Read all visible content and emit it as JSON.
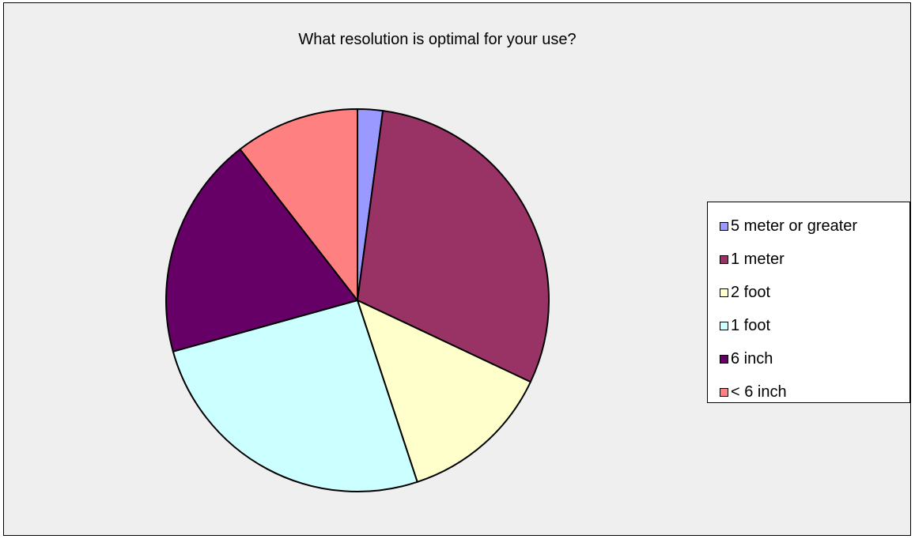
{
  "chart_data": {
    "type": "pie",
    "title": "What resolution is optimal for your use?",
    "categories": [
      "5 meter or greater",
      "1 meter",
      "2 foot",
      "1 foot",
      "6 inch",
      "< 6 inch"
    ],
    "values": [
      2.2,
      31,
      13.4,
      26.7,
      19.5,
      10.9
    ],
    "colors": [
      "#9999ff",
      "#993366",
      "#ffffcc",
      "#ccffff",
      "#660066",
      "#ff8080"
    ],
    "start_angle_deg": 0,
    "direction": "clockwise",
    "legend_position": "right"
  }
}
